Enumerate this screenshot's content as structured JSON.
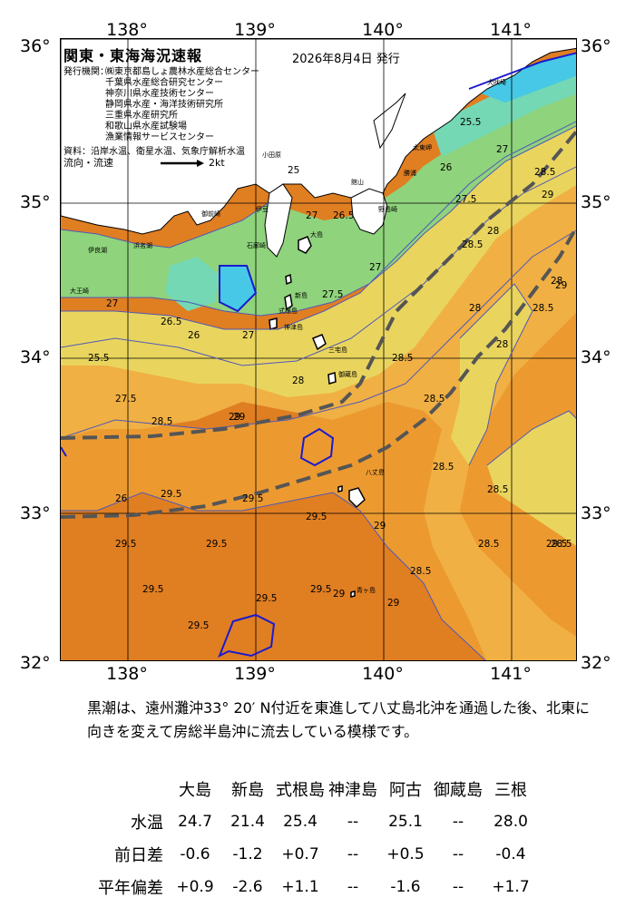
{
  "axes": {
    "lon_labels": [
      "138°",
      "139°",
      "140°",
      "141°"
    ],
    "lat_labels": [
      "36°",
      "35°",
      "34°",
      "33°",
      "32°"
    ]
  },
  "header": {
    "title": "関東・東海海況速報",
    "date": "2026年8月4日 発行",
    "issuer_label": "発行機関：",
    "issuers": [
      "㈱東京都島しょ農林水産総合センター",
      "千葉県水産総合研究センター",
      "神奈川県水産技術センター",
      "静岡県水産・海洋技術研究所",
      "三重県水産研究所",
      "和歌山県水産試験場",
      "漁業情報サービスセンター"
    ],
    "source": "資料：沿岸水温、衛星水温、気象庁解析水温",
    "flow_label": "流向・流速",
    "flow_scale": "2kt"
  },
  "map": {
    "contour_labels": [
      "25.5",
      "26",
      "26.5",
      "27",
      "27.5",
      "28",
      "28.5",
      "29",
      "29.5",
      "25",
      "26.5",
      "27",
      "27.5",
      "28",
      "28.5",
      "29",
      "29.5",
      "26",
      "27",
      "28",
      "28.5",
      "29",
      "29.5",
      "25.5",
      "26.5",
      "27.5",
      "28.5",
      "29"
    ],
    "places": [
      "大島",
      "新島",
      "式根島",
      "神津島",
      "三宅島",
      "御蔵島",
      "八丈島",
      "青ヶ島",
      "房総半島",
      "犬吠埼",
      "太東岬",
      "勝浦",
      "館山",
      "野島崎",
      "小田原",
      "伊豆",
      "石廊崎",
      "御前崎",
      "浜名湖",
      "伊良湖",
      "大王崎"
    ]
  },
  "description": "黒潮は、遠州灘沖33° 20′ N付近を東進して八丈島北沖を通過した後、北東に向きを変えて房総半島沖に流去している模様です。",
  "table": {
    "columns": [
      "大島",
      "新島",
      "式根島",
      "神津島",
      "阿古",
      "御蔵島",
      "三根"
    ],
    "rows": [
      {
        "label": "水温",
        "values": [
          "24.7",
          "21.4",
          "25.4",
          "--",
          "25.1",
          "--",
          "28.0"
        ]
      },
      {
        "label": "前日差",
        "values": [
          "-0.6",
          "-1.2",
          "+0.7",
          "--",
          "+0.5",
          "--",
          "-0.4"
        ]
      },
      {
        "label": "平年偏差",
        "values": [
          "+0.9",
          "-2.6",
          "+1.1",
          "--",
          "-1.6",
          "--",
          "+1.7"
        ]
      }
    ]
  },
  "colors": {
    "cold": "#46c8e6",
    "cool": "#74d8b4",
    "green": "#8fd37c",
    "yellow": "#e9d55e",
    "orange_light": "#f0b043",
    "orange": "#ec9a30",
    "orange_dark": "#e07e22",
    "land": "#ffffff",
    "kuroshio": "#555555",
    "contour": "#5058b8"
  }
}
